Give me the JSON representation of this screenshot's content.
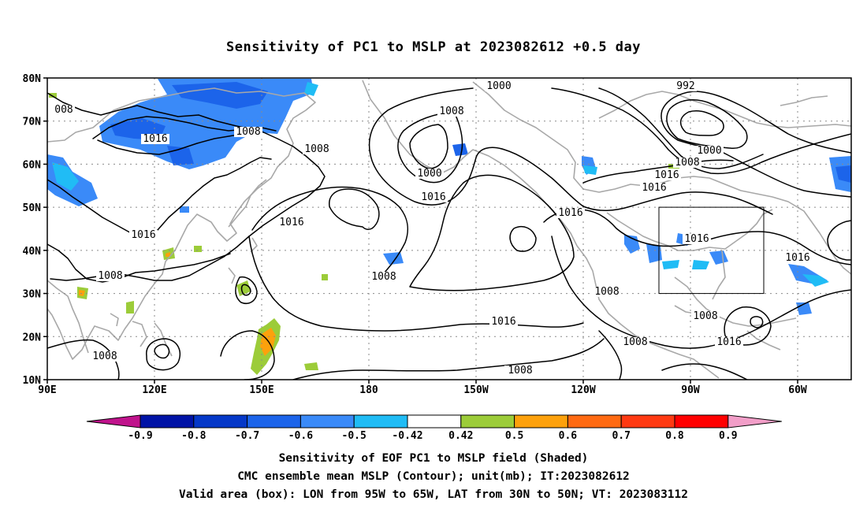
{
  "title": "Sensitivity of PC1 to MSLP at 2023082612 +0.5 day",
  "map": {
    "lat_labels": [
      "80N",
      "70N",
      "60N",
      "50N",
      "40N",
      "30N",
      "20N",
      "10N"
    ],
    "lon_labels": [
      "90E",
      "120E",
      "150E",
      "180",
      "150W",
      "120W",
      "90W",
      "60W"
    ],
    "valid_box": {
      "lon_from": "95W",
      "lon_to": "65W",
      "lat_from": "30N",
      "lat_to": "50N"
    },
    "contour_labels": [
      "008",
      "1016",
      "1008",
      "1008",
      "1016",
      "1008",
      "1016",
      "1008",
      "1000",
      "1008",
      "1016",
      "1000",
      "992",
      "1000",
      "1008",
      "1016",
      "1016",
      "1016",
      "1016",
      "1016",
      "1008",
      "1008",
      "1008",
      "1008",
      "1016",
      "1016",
      "1008",
      "1008"
    ]
  },
  "colorbar": {
    "labels": [
      "-0.9",
      "-0.8",
      "-0.7",
      "-0.6",
      "-0.5",
      "-0.42",
      "0.42",
      "0.5",
      "0.6",
      "0.7",
      "0.8",
      "0.9"
    ],
    "colors": {
      "below": "#c0138c",
      "bins": [
        "#0013a6",
        "#0538c8",
        "#1c64ea",
        "#3a8af8",
        "#20bcf5",
        "#ffffff",
        "#9ccc39",
        "#fda10c",
        "#ff6a12",
        "#ff3a12",
        "#ff0000"
      ],
      "above": "#f29ec8"
    }
  },
  "captions": [
    "Sensitivity of EOF PC1 to MSLP field (Shaded)",
    "CMC ensemble mean MSLP (Contour); unit(mb); IT:2023082612",
    "Valid area (box): LON from 95W to 65W, LAT from 30N to 50N; VT: 2023083112"
  ]
}
